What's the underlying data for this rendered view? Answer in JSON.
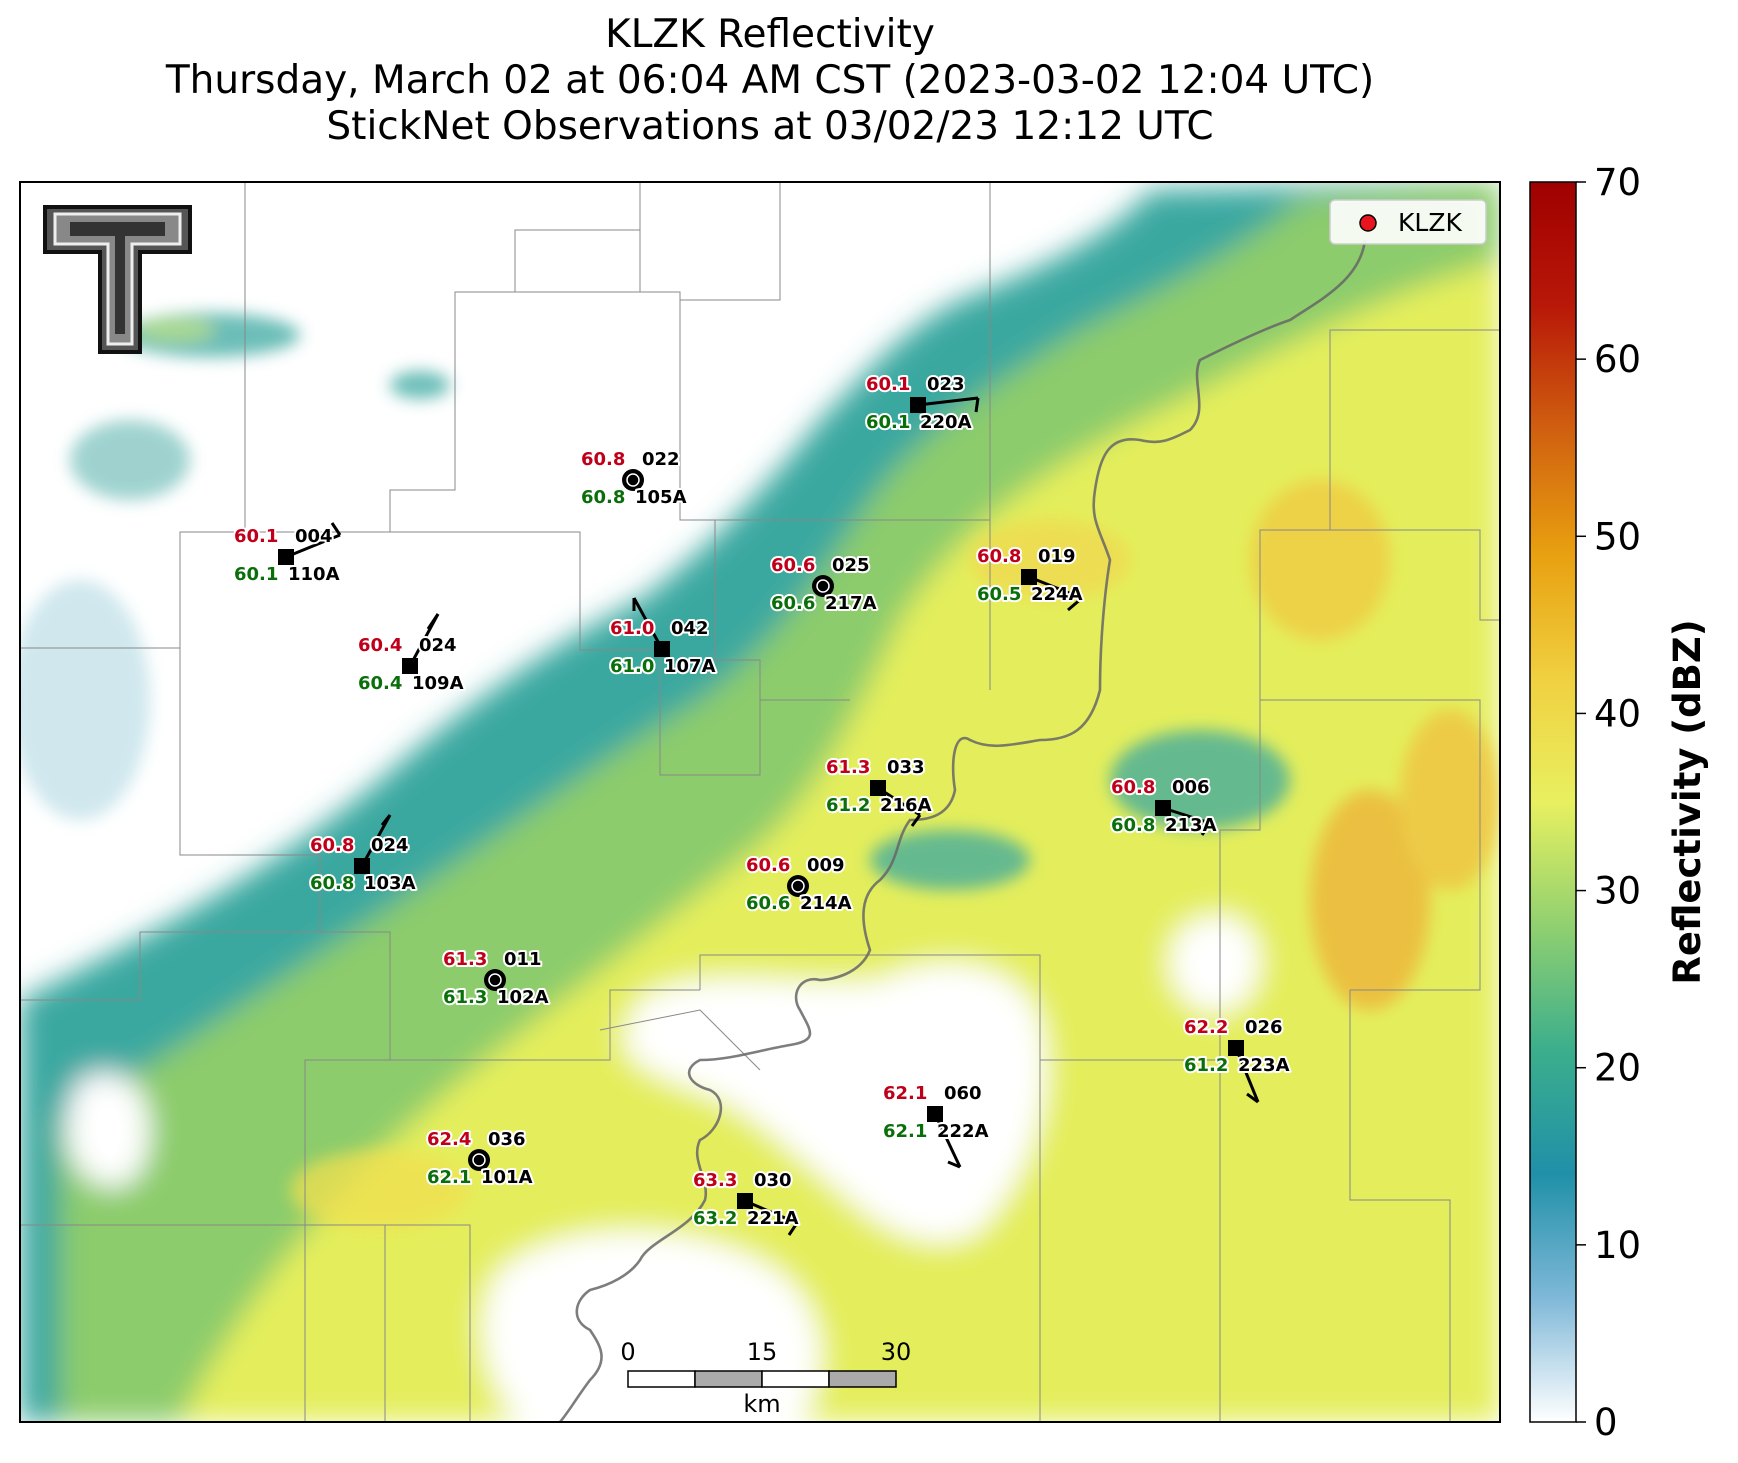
{
  "title": {
    "line1": "KLZK Reflectivity",
    "line2": "Thursday, March 02 at 06:04 AM CST (2023-03-02 12:04 UTC)",
    "line3": "StickNet Observations at 03/02/23 12:12 UTC"
  },
  "legend": {
    "label": "KLZK",
    "marker_color": "#e8141e"
  },
  "colorbar": {
    "label": "Reflectivity (dBZ)",
    "min": 0,
    "max": 70,
    "ticks": [
      "0",
      "10",
      "20",
      "30",
      "40",
      "50",
      "60",
      "70"
    ],
    "colors": [
      "#ffffff",
      "#7fb8d8",
      "#2090a8",
      "#3cae8c",
      "#90d070",
      "#e8f060",
      "#f0d040",
      "#e8a010",
      "#d06010",
      "#b81808",
      "#a00000"
    ]
  },
  "scale_bar": {
    "ticks": [
      "0",
      "15",
      "30"
    ],
    "unit": "km"
  },
  "logo": {
    "icon": "double-t-logo"
  },
  "colors": {
    "temperature": "#c0001a",
    "dewpoint": "#0a6e0a",
    "station_id": "#000000"
  },
  "stations": [
    {
      "id": "023",
      "probe": "220A",
      "temp": "60.1",
      "dew": "60.1",
      "marker": "square"
    },
    {
      "id": "022",
      "probe": "105A",
      "temp": "60.8",
      "dew": "60.8",
      "marker": "calm"
    },
    {
      "id": "004",
      "probe": "110A",
      "temp": "60.1",
      "dew": "60.1",
      "marker": "square"
    },
    {
      "id": "025",
      "probe": "217A",
      "temp": "60.6",
      "dew": "60.6",
      "marker": "calm"
    },
    {
      "id": "019",
      "probe": "224A",
      "temp": "60.8",
      "dew": "60.5",
      "marker": "square"
    },
    {
      "id": "024",
      "probe": "109A",
      "temp": "60.4",
      "dew": "60.4",
      "marker": "square"
    },
    {
      "id": "042",
      "probe": "107A",
      "temp": "61.0",
      "dew": "61.0",
      "marker": "square"
    },
    {
      "id": "033",
      "probe": "216A",
      "temp": "61.3",
      "dew": "61.2",
      "marker": "square"
    },
    {
      "id": "006",
      "probe": "213A",
      "temp": "60.8",
      "dew": "60.8",
      "marker": "square"
    },
    {
      "id": "024",
      "probe": "103A",
      "temp": "60.8",
      "dew": "60.8",
      "marker": "square"
    },
    {
      "id": "009",
      "probe": "214A",
      "temp": "60.6",
      "dew": "60.6",
      "marker": "calm"
    },
    {
      "id": "011",
      "probe": "102A",
      "temp": "61.3",
      "dew": "61.3",
      "marker": "calm"
    },
    {
      "id": "026",
      "probe": "223A",
      "temp": "62.2",
      "dew": "61.2",
      "marker": "square"
    },
    {
      "id": "060",
      "probe": "222A",
      "temp": "62.1",
      "dew": "62.1",
      "marker": "square"
    },
    {
      "id": "036",
      "probe": "101A",
      "temp": "62.4",
      "dew": "62.1",
      "marker": "calm"
    },
    {
      "id": "030",
      "probe": "221A",
      "temp": "63.3",
      "dew": "63.2",
      "marker": "square"
    }
  ]
}
